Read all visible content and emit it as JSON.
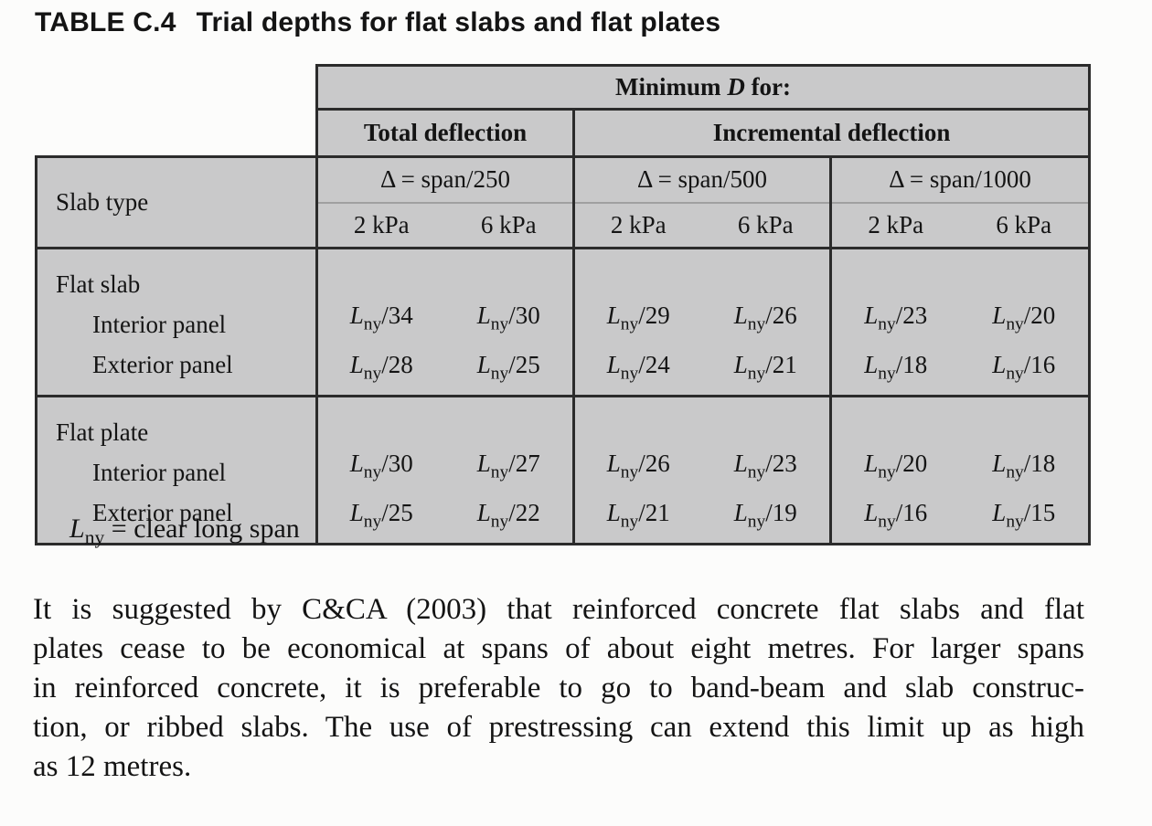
{
  "title": {
    "label": "TABLE C.4",
    "caption": "Trial depths for flat slabs and flat plates"
  },
  "table": {
    "corner_label": "Slab type",
    "min_d_header": {
      "prefix": "Minimum ",
      "symbol": "D",
      "suffix": " for:"
    },
    "deflection_headers": [
      "Total deflection",
      "Incremental deflection"
    ],
    "delta_headers": [
      "Δ = span/250",
      "Δ = span/500",
      "Δ = span/1000"
    ],
    "kpa_headers": [
      "2 kPa",
      "6 kPa",
      "2 kPa",
      "6 kPa",
      "2 kPa",
      "6 kPa"
    ],
    "span_symbol": {
      "base": "L",
      "sub": "ny"
    },
    "sections": [
      {
        "label": "Flat slab",
        "rows": [
          {
            "label": "Interior panel",
            "denominators": [
              "34",
              "30",
              "29",
              "26",
              "23",
              "20"
            ]
          },
          {
            "label": "Exterior panel",
            "denominators": [
              "28",
              "25",
              "24",
              "21",
              "18",
              "16"
            ]
          }
        ]
      },
      {
        "label": "Flat plate",
        "rows": [
          {
            "label": "Interior panel",
            "denominators": [
              "30",
              "27",
              "26",
              "23",
              "20",
              "18"
            ]
          },
          {
            "label": "Exterior panel",
            "denominators": [
              "25",
              "22",
              "21",
              "19",
              "16",
              "15"
            ]
          }
        ]
      }
    ]
  },
  "footnote": {
    "symbol": "L",
    "sub": "ny",
    "text": " = clear long span"
  },
  "paragraph": {
    "lines": [
      "It is suggested by C&CA (2003) that reinforced concrete flat slabs and flat",
      "plates cease to be economical at spans of about eight metres. For larger spans",
      "in reinforced concrete, it is preferable to go to band-beam and slab construc-",
      "tion, or ribbed slabs. The use of prestressing can extend this limit up as high",
      "as 12 metres."
    ]
  },
  "colors": {
    "table_cell_background": "#c9c9ca",
    "table_border": "#2b2b2b",
    "light_rule": "#a0a0a0",
    "text": "#141414",
    "page_background": "#fcfcfb"
  }
}
